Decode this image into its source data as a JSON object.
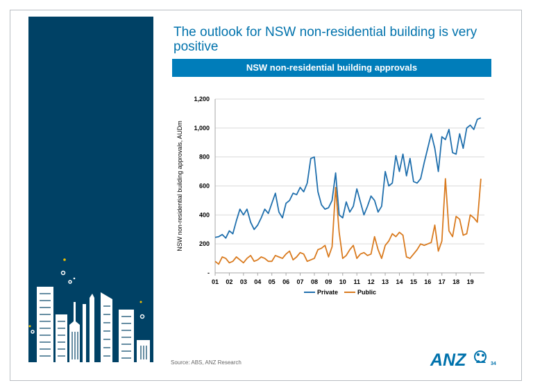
{
  "slide": {
    "title": "The outlook for NSW non-residential building is very positive",
    "banner": "NSW non-residential building approvals",
    "source": "Source: ABS, ANZ Research",
    "page_number": "34",
    "logo_text": "ANZ"
  },
  "colors": {
    "sidebar": "#004165",
    "accent": "#007dba",
    "private": "#1f6fad",
    "public": "#d97a1e"
  },
  "chart_data": {
    "type": "line",
    "title": "",
    "xlabel": "",
    "ylabel": "NSW non-residential building approvals, AUDm",
    "ylim": [
      0,
      1200
    ],
    "yticks": [
      0,
      200,
      400,
      600,
      800,
      1000,
      1200
    ],
    "ytick_labels": [
      "-",
      "200",
      "400",
      "600",
      "800",
      "1,000",
      "1,200"
    ],
    "xlim": [
      2001.0,
      2020.0
    ],
    "xticks": [
      2001,
      2002,
      2003,
      2004,
      2005,
      2006,
      2007,
      2008,
      2009,
      2010,
      2011,
      2012,
      2013,
      2014,
      2015,
      2016,
      2017,
      2018,
      2019
    ],
    "xtick_labels": [
      "01",
      "02",
      "03",
      "04",
      "05",
      "06",
      "07",
      "08",
      "09",
      "10",
      "11",
      "12",
      "13",
      "14",
      "15",
      "16",
      "17",
      "18",
      "19"
    ],
    "grid": true,
    "legend": "bottom",
    "series": [
      {
        "name": "Private",
        "x": [
          2001.0,
          2001.25,
          2001.5,
          2001.75,
          2002.0,
          2002.25,
          2002.5,
          2002.75,
          2003.0,
          2003.25,
          2003.5,
          2003.75,
          2004.0,
          2004.25,
          2004.5,
          2004.75,
          2005.0,
          2005.25,
          2005.5,
          2005.75,
          2006.0,
          2006.25,
          2006.5,
          2006.75,
          2007.0,
          2007.25,
          2007.5,
          2007.75,
          2008.0,
          2008.25,
          2008.5,
          2008.75,
          2009.0,
          2009.25,
          2009.5,
          2009.75,
          2010.0,
          2010.25,
          2010.5,
          2010.75,
          2011.0,
          2011.25,
          2011.5,
          2011.75,
          2012.0,
          2012.25,
          2012.5,
          2012.75,
          2013.0,
          2013.25,
          2013.5,
          2013.75,
          2014.0,
          2014.25,
          2014.5,
          2014.75,
          2015.0,
          2015.25,
          2015.5,
          2015.75,
          2016.0,
          2016.25,
          2016.5,
          2016.75,
          2017.0,
          2017.25,
          2017.5,
          2017.75,
          2018.0,
          2018.25,
          2018.5,
          2018.75,
          2019.0,
          2019.25,
          2019.5,
          2019.75
        ],
        "values": [
          245,
          250,
          265,
          240,
          290,
          270,
          360,
          440,
          400,
          440,
          350,
          300,
          330,
          380,
          440,
          410,
          480,
          550,
          420,
          380,
          480,
          500,
          550,
          540,
          590,
          560,
          620,
          790,
          800,
          560,
          470,
          440,
          450,
          500,
          690,
          400,
          380,
          490,
          420,
          460,
          580,
          490,
          400,
          460,
          530,
          500,
          420,
          460,
          700,
          600,
          620,
          810,
          700,
          820,
          670,
          790,
          630,
          620,
          650,
          760,
          860,
          960,
          860,
          700,
          940,
          920,
          990,
          830,
          820,
          960,
          860,
          1000,
          1020,
          990,
          1060,
          1070
        ]
      },
      {
        "name": "Public",
        "x": [
          2001.0,
          2001.25,
          2001.5,
          2001.75,
          2002.0,
          2002.25,
          2002.5,
          2002.75,
          2003.0,
          2003.25,
          2003.5,
          2003.75,
          2004.0,
          2004.25,
          2004.5,
          2004.75,
          2005.0,
          2005.25,
          2005.5,
          2005.75,
          2006.0,
          2006.25,
          2006.5,
          2006.75,
          2007.0,
          2007.25,
          2007.5,
          2007.75,
          2008.0,
          2008.25,
          2008.5,
          2008.75,
          2009.0,
          2009.25,
          2009.5,
          2009.75,
          2010.0,
          2010.25,
          2010.5,
          2010.75,
          2011.0,
          2011.25,
          2011.5,
          2011.75,
          2012.0,
          2012.25,
          2012.5,
          2012.75,
          2013.0,
          2013.25,
          2013.5,
          2013.75,
          2014.0,
          2014.25,
          2014.5,
          2014.75,
          2015.0,
          2015.25,
          2015.5,
          2015.75,
          2016.0,
          2016.25,
          2016.5,
          2016.75,
          2017.0,
          2017.25,
          2017.5,
          2017.75,
          2018.0,
          2018.25,
          2018.5,
          2018.75,
          2019.0,
          2019.25,
          2019.5,
          2019.75
        ],
        "values": [
          80,
          60,
          110,
          100,
          70,
          80,
          110,
          90,
          70,
          100,
          120,
          80,
          90,
          110,
          100,
          80,
          80,
          120,
          110,
          100,
          130,
          150,
          90,
          110,
          140,
          130,
          80,
          90,
          100,
          160,
          170,
          190,
          110,
          180,
          590,
          280,
          100,
          120,
          160,
          190,
          100,
          130,
          140,
          120,
          130,
          250,
          160,
          100,
          190,
          220,
          270,
          250,
          280,
          260,
          110,
          100,
          130,
          160,
          200,
          190,
          200,
          210,
          330,
          150,
          220,
          650,
          290,
          250,
          390,
          370,
          260,
          270,
          400,
          380,
          350,
          650
        ]
      }
    ]
  }
}
